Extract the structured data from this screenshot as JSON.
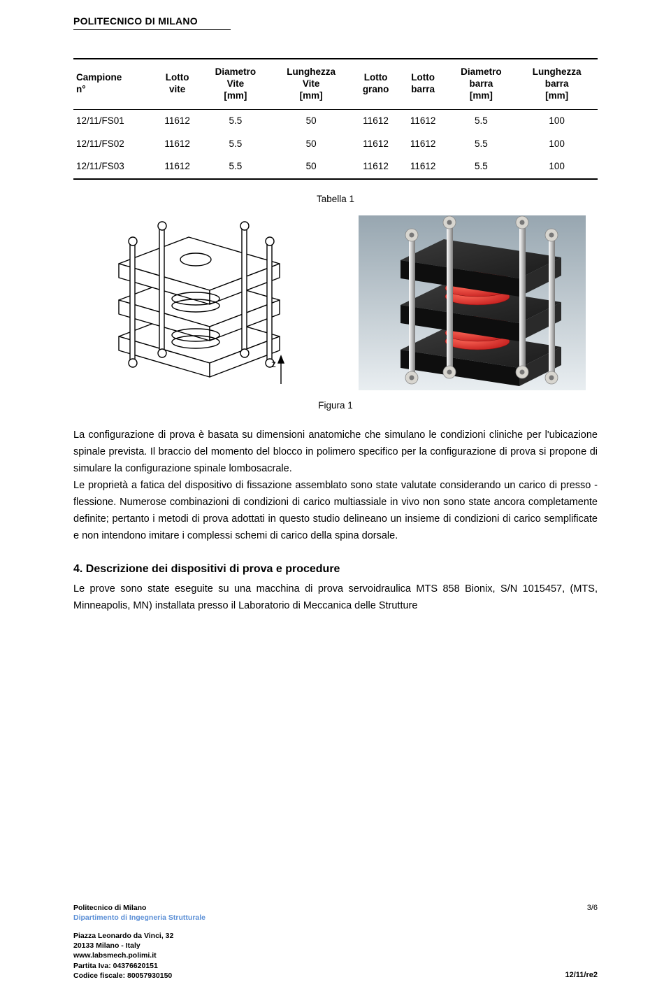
{
  "header": {
    "org": "POLITECNICO DI MILANO"
  },
  "table": {
    "columns": [
      "Campione\nn°",
      "Lotto\nvite",
      "Diametro\nVite\n[mm]",
      "Lunghezza\nVite\n[mm]",
      "Lotto\ngrano",
      "Lotto\nbarra",
      "Diametro\nbarra\n[mm]",
      "Lunghezza\nbarra\n[mm]"
    ],
    "rows": [
      [
        "12/11/FS01",
        "11612",
        "5.5",
        "50",
        "11612",
        "11612",
        "5.5",
        "100"
      ],
      [
        "12/11/FS02",
        "11612",
        "5.5",
        "50",
        "11612",
        "11612",
        "5.5",
        "100"
      ],
      [
        "12/11/FS03",
        "11612",
        "5.5",
        "50",
        "11612",
        "11612",
        "5.5",
        "100"
      ]
    ],
    "caption": "Tabella 1"
  },
  "figure": {
    "caption": "Figura 1",
    "left": {
      "axis_label": "z"
    },
    "right": {
      "body_color": "#1b1b1b",
      "spring_color": "#c01a1a",
      "nut_color": "#d8d6d0",
      "rod_color": "#bfbfbf",
      "bg_grad_top": "#97a6b0",
      "bg_grad_bot": "#e9eef1"
    }
  },
  "paragraphs": {
    "p1": "La configurazione di prova è basata su dimensioni anatomiche che simulano le condizioni cliniche per l'ubicazione spinale prevista. Il braccio del momento del blocco in polimero specifico per la configurazione di prova si propone di simulare la configurazione spinale lombosacrale.",
    "p2": "Le proprietà a fatica del dispositivo di fissazione assemblato sono state valutate considerando un carico di presso - flessione. Numerose combinazioni di condizioni di carico multiassiale in vivo non sono state ancora completamente definite; pertanto i metodi di prova adottati in questo studio delineano un insieme di condizioni di carico semplificate e non intendono imitare i complessi schemi di carico della spina dorsale."
  },
  "section": {
    "title": "4. Descrizione dei dispositivi di prova e procedure",
    "body": "Le prove sono state eseguite su una macchina di prova servoidraulica MTS 858 Bionix, S/N 1015457, (MTS, Minneapolis, MN) installata presso il Laboratorio di Meccanica delle Strutture"
  },
  "footer": {
    "uni": "Politecnico di Milano",
    "dept": "Dipartimento di Ingegneria Strutturale",
    "addr1": "Piazza Leonardo da Vinci, 32",
    "addr2": "20133 Milano - Italy",
    "web": "www.labsmech.polimi.it",
    "piva": "Partita Iva: 04376620151",
    "cf": "Codice fiscale: 80057930150",
    "page": "3/6",
    "ref": "12/11/re2"
  }
}
